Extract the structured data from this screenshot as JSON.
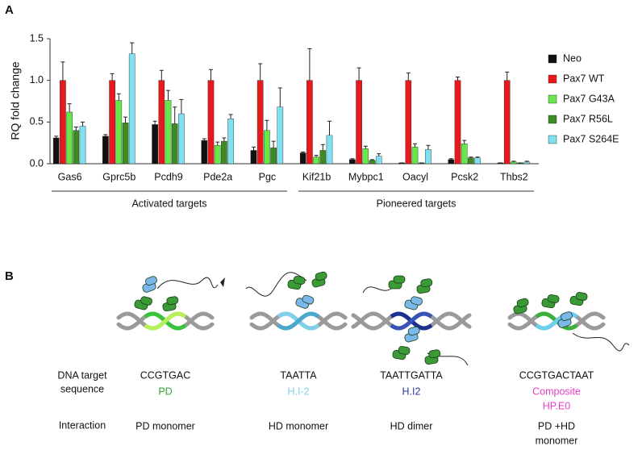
{
  "panel_labels": [
    "A",
    "B"
  ],
  "chart_data": {
    "type": "bar",
    "y_label": "RQ fold change",
    "categories": [
      "Gas6",
      "Gprc5b",
      "Pcdh9",
      "Pde2a",
      "Pgc",
      "Kif21b",
      "Mybpc1",
      "Oacyl",
      "Pcsk2",
      "Thbs2"
    ],
    "groups": [
      {
        "label": "Activated targets",
        "count": 5
      },
      {
        "label": "Pioneered targets",
        "count": 5
      }
    ],
    "ylim": [
      0,
      1.5
    ],
    "yticks": [
      {
        "value": 0,
        "label": "0.0"
      },
      {
        "value": 0.5,
        "label": "0.5"
      },
      {
        "value": 1,
        "label": "1.0"
      },
      {
        "value": 1.5,
        "label": "1.5"
      }
    ],
    "legend": "right",
    "series": [
      {
        "name": "Neo",
        "color": "#111111",
        "values": [
          0.31,
          0.33,
          0.47,
          0.28,
          0.16,
          0.13,
          0.05,
          0.01,
          0.05,
          0.01
        ],
        "errors": [
          0.02,
          0.02,
          0.04,
          0.02,
          0.04,
          0.01,
          0.01,
          0,
          0.01,
          0
        ]
      },
      {
        "name": "Pax7 WT",
        "color": "#e8191c",
        "values": [
          1,
          1,
          1,
          1,
          1,
          1,
          1,
          1,
          1,
          1
        ],
        "errors": [
          0.22,
          0.08,
          0.12,
          0.13,
          0.2,
          0.38,
          0.15,
          0.09,
          0.04,
          0.1
        ]
      },
      {
        "name": "Pax7 G43A",
        "color": "#66e84a",
        "values": [
          0.62,
          0.76,
          0.76,
          0.22,
          0.4,
          0.08,
          0.18,
          0.2,
          0.24,
          0.02
        ],
        "errors": [
          0.1,
          0.08,
          0.12,
          0.04,
          0.12,
          0.02,
          0.03,
          0.04,
          0.04,
          0.01
        ]
      },
      {
        "name": "Pax7 R56L",
        "color": "#3d8c23",
        "values": [
          0.4,
          0.49,
          0.48,
          0.27,
          0.19,
          0.16,
          0.04,
          0.01,
          0.07,
          0.01
        ],
        "errors": [
          0.04,
          0.07,
          0.2,
          0.04,
          0.08,
          0.07,
          0.01,
          0,
          0.01,
          0
        ]
      },
      {
        "name": "Pax7 S264E",
        "color": "#7ee0f0",
        "values": [
          0.45,
          1.32,
          0.6,
          0.54,
          0.68,
          0.34,
          0.09,
          0.17,
          0.07,
          0.02
        ],
        "errors": [
          0.05,
          0.13,
          0.17,
          0.05,
          0.23,
          0.17,
          0.03,
          0.05,
          0.01,
          0.01
        ]
      }
    ]
  },
  "panel_b": {
    "row_labels": [
      [
        "DNA target",
        "sequence"
      ],
      [
        "Interaction"
      ]
    ],
    "columns": [
      {
        "sequence": "CCGTGAC",
        "name": [
          "PD"
        ],
        "name_color": "#3aa036",
        "interaction": [
          "PD monomer"
        ]
      },
      {
        "sequence": "TAATTA",
        "name": [
          "H.I-2"
        ],
        "name_color": "#7fd0e8",
        "interaction": [
          "HD monomer"
        ]
      },
      {
        "sequence": "TAATTGATTA",
        "name": [
          "H.I2"
        ],
        "name_color": "#2b3a9a",
        "interaction": [
          "HD dimer"
        ]
      },
      {
        "sequence": "CCGTGACTAAT",
        "name": [
          "Composite",
          "HP.E0"
        ],
        "name_color": "#e43fc4",
        "interaction": [
          "PD +HD",
          "monomer"
        ]
      }
    ]
  }
}
